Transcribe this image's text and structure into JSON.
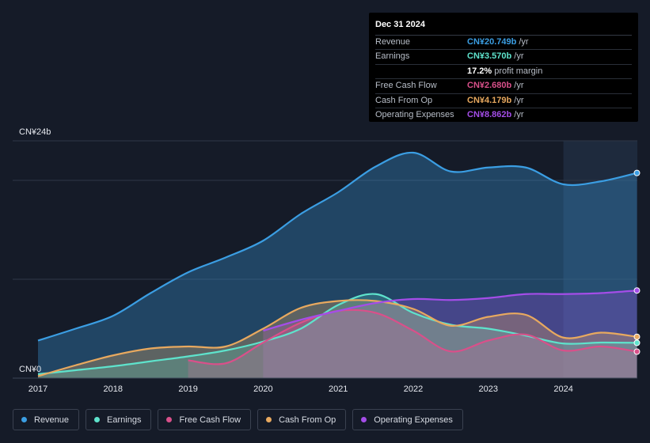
{
  "chart_data": {
    "type": "area",
    "title": "",
    "xlabel": "",
    "ylabel": "",
    "ylim": [
      0,
      24
    ],
    "y_axis_labels": {
      "top": "CN¥24b",
      "bottom": "CN¥0"
    },
    "x_ticks": [
      "2017",
      "2018",
      "2019",
      "2020",
      "2021",
      "2022",
      "2023",
      "2024"
    ],
    "series": [
      {
        "name": "Revenue",
        "color": "#3b9ee3",
        "x": [
          2017.0,
          2017.5,
          2018.0,
          2018.5,
          2019.0,
          2019.5,
          2020.0,
          2020.5,
          2021.0,
          2021.5,
          2022.0,
          2022.5,
          2023.0,
          2023.5,
          2024.0,
          2024.5,
          2024.98
        ],
        "values": [
          3.8,
          5.0,
          6.3,
          8.6,
          10.7,
          12.2,
          13.9,
          16.6,
          18.8,
          21.4,
          22.8,
          20.9,
          21.3,
          21.3,
          19.6,
          19.9,
          20.749
        ]
      },
      {
        "name": "Earnings",
        "color": "#5ee3cc",
        "x": [
          2017.0,
          2017.5,
          2018.0,
          2018.5,
          2019.0,
          2019.5,
          2020.0,
          2020.5,
          2021.0,
          2021.5,
          2022.0,
          2022.5,
          2023.0,
          2023.5,
          2024.0,
          2024.5,
          2024.98
        ],
        "values": [
          0.4,
          0.8,
          1.2,
          1.7,
          2.2,
          2.8,
          3.7,
          5.0,
          7.4,
          8.5,
          6.6,
          5.4,
          5.0,
          4.3,
          3.5,
          3.6,
          3.57
        ]
      },
      {
        "name": "Free Cash Flow",
        "color": "#d9508a",
        "x": [
          2019.0,
          2019.5,
          2020.0,
          2020.5,
          2021.0,
          2021.5,
          2022.0,
          2022.5,
          2023.0,
          2023.5,
          2024.0,
          2024.5,
          2024.98
        ],
        "values": [
          1.8,
          1.5,
          3.6,
          5.6,
          6.8,
          6.6,
          4.8,
          2.7,
          3.8,
          4.4,
          2.8,
          3.2,
          2.68
        ]
      },
      {
        "name": "Cash From Op",
        "color": "#e8a95f",
        "x": [
          2017.0,
          2017.5,
          2018.0,
          2018.5,
          2019.0,
          2019.5,
          2020.0,
          2020.5,
          2021.0,
          2021.5,
          2022.0,
          2022.5,
          2023.0,
          2023.5,
          2024.0,
          2024.5,
          2024.98
        ],
        "values": [
          0.2,
          1.3,
          2.3,
          3.0,
          3.2,
          3.2,
          5.0,
          7.1,
          7.8,
          7.8,
          7.0,
          5.3,
          6.2,
          6.4,
          4.1,
          4.6,
          4.179
        ]
      },
      {
        "name": "Operating Expenses",
        "color": "#a44de8",
        "x": [
          2020.0,
          2020.5,
          2021.0,
          2021.5,
          2022.0,
          2022.5,
          2023.0,
          2023.5,
          2024.0,
          2024.5,
          2024.98
        ],
        "values": [
          4.8,
          5.9,
          6.8,
          7.6,
          8.0,
          7.9,
          8.1,
          8.5,
          8.5,
          8.6,
          8.862
        ]
      }
    ],
    "legend": [
      "Revenue",
      "Earnings",
      "Free Cash Flow",
      "Cash From Op",
      "Operating Expenses"
    ],
    "tooltip": {
      "date": "Dec 31 2024",
      "rows": [
        {
          "label": "Revenue",
          "value": "CN¥20.749b",
          "unit": "/yr",
          "color": "#3b9ee3"
        },
        {
          "label": "Earnings",
          "value": "CN¥3.570b",
          "unit": "/yr",
          "color": "#5ee3cc"
        },
        {
          "label": "",
          "value": "17.2%",
          "unit": "profit margin",
          "color": "#ffffff"
        },
        {
          "label": "Free Cash Flow",
          "value": "CN¥2.680b",
          "unit": "/yr",
          "color": "#d9508a"
        },
        {
          "label": "Cash From Op",
          "value": "CN¥4.179b",
          "unit": "/yr",
          "color": "#e8a95f"
        },
        {
          "label": "Operating Expenses",
          "value": "CN¥8.862b",
          "unit": "/yr",
          "color": "#a44de8"
        }
      ]
    }
  }
}
